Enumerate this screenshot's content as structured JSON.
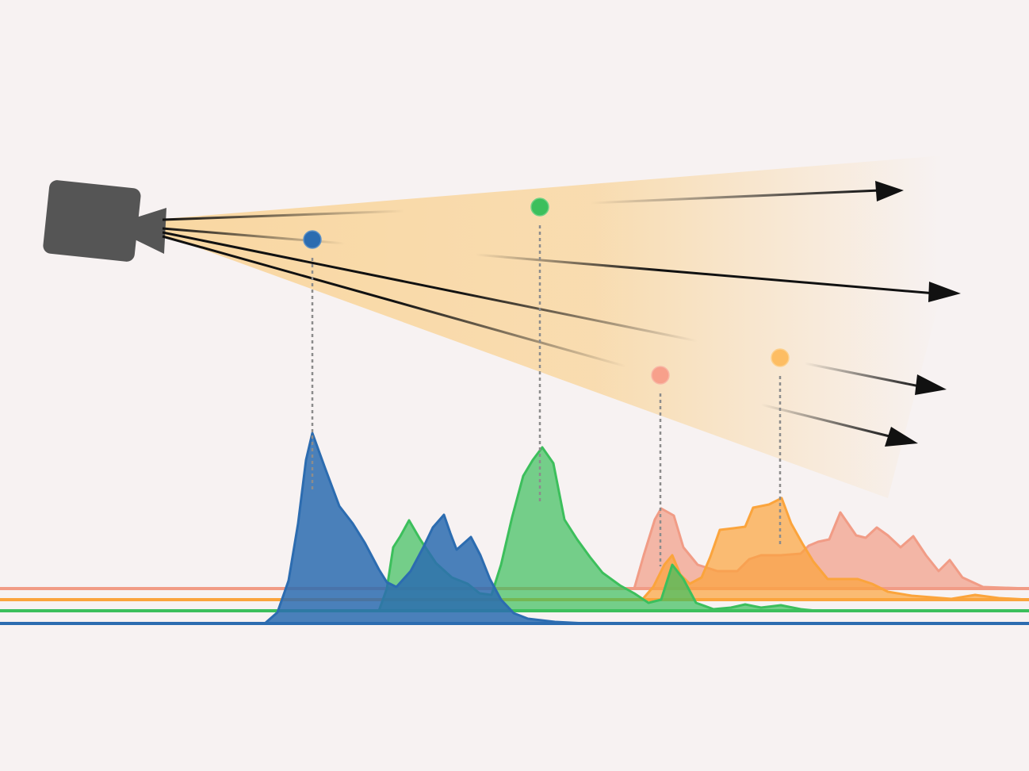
{
  "colors": {
    "background": "#f7f2f2",
    "camera": "#555555",
    "frustum": "#f9d9a6",
    "ray": "#111111",
    "guide": "#8c8c8c",
    "salmon": "#f19c86",
    "orange": "#fba43c",
    "green": "#3cbf5c",
    "blue": "#2c6cb0"
  },
  "icons": {
    "camera": "video-camera-icon",
    "ray_head": "arrow-head-icon"
  },
  "sample_points": [
    {
      "name": "blue",
      "color": "#2c6cb0"
    },
    {
      "name": "green",
      "color": "#3cbf5c"
    },
    {
      "name": "salmon",
      "color": "#f7a08b"
    },
    {
      "name": "orange",
      "color": "#fdbd63"
    }
  ],
  "rays": [
    {
      "name": "ray-1"
    },
    {
      "name": "ray-2"
    },
    {
      "name": "ray-3"
    },
    {
      "name": "ray-4"
    }
  ],
  "distributions": [
    {
      "name": "salmon",
      "color": "#f19c86"
    },
    {
      "name": "orange",
      "color": "#fba43c"
    },
    {
      "name": "green",
      "color": "#3cbf5c"
    },
    {
      "name": "blue",
      "color": "#2c6cb0"
    }
  ]
}
